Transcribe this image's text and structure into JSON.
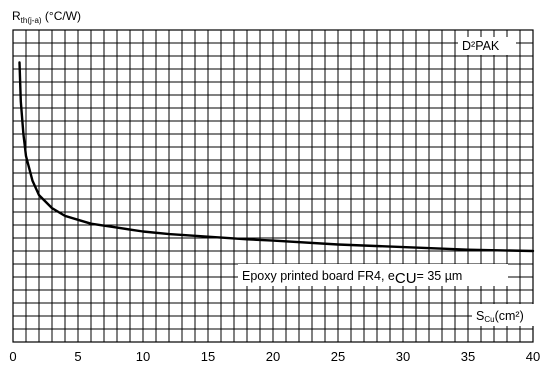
{
  "chart_data": {
    "type": "line",
    "ylabel_main": "R",
    "ylabel_sub": "th(j-a)",
    "ylabel_unit": " (°C/W)",
    "xlabel_main": "S",
    "xlabel_sub": "Cu",
    "xlabel_unit": "(cm²)",
    "legend": "D²PAK",
    "annotation_main": "Epoxy printed board FR4, e",
    "annotation_sub": "CU",
    "annotation_rest": "= 35 µm",
    "xlim": [
      0,
      40
    ],
    "x_ticks": [
      "0",
      "5",
      "10",
      "15",
      "20",
      "25",
      "30",
      "35",
      "40"
    ],
    "grid": true,
    "series": [
      {
        "x": [
          0.5,
          0.6,
          0.8,
          1,
          1.5,
          2,
          3,
          4,
          5,
          6,
          8,
          10,
          12,
          15,
          18,
          20,
          25,
          30,
          35,
          40
        ],
        "y": [
          21.5,
          18.5,
          16.0,
          14.3,
          12.4,
          11.3,
          10.3,
          9.7,
          9.4,
          9.1,
          8.8,
          8.5,
          8.3,
          8.1,
          7.9,
          7.8,
          7.5,
          7.3,
          7.1,
          7.0
        ]
      }
    ]
  }
}
